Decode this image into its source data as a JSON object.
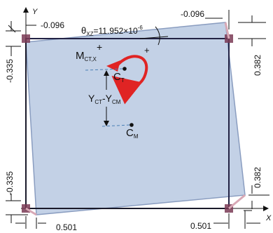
{
  "axes": {
    "y_label": "Y",
    "x_label": "X"
  },
  "displacements": {
    "top_left": "-0.096",
    "top_right": "-0.096",
    "left_upper": "-0.335",
    "left_lower": "-0.335",
    "right_upper": "0.382",
    "right_lower": "0.382",
    "bottom_left": "0.501",
    "bottom_right": "0.501"
  },
  "rotation": {
    "theta_symbol": "θ",
    "theta_sub": "XZ",
    "theta_value": "=11.952×10",
    "theta_exp": "-6",
    "plus_sign": "+",
    "moment_symbol": "M",
    "moment_sub": "CT,X",
    "moment_plus": "+"
  },
  "centers": {
    "ct_symbol": "C",
    "ct_sub": "T",
    "cm_symbol": "C",
    "cm_sub": "M",
    "offset_y1": "Y",
    "offset_sub1": "CT",
    "offset_dash": "-Y",
    "offset_sub2": "CM"
  },
  "colors": {
    "frame": "#222244",
    "deformed_fill": "#b9c9e2",
    "deformed_stroke": "#8a9dc0",
    "moment_arrow": "#e02424",
    "node": "#7a3a55",
    "dashed_ref": "#4a7fb5"
  }
}
